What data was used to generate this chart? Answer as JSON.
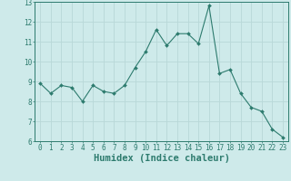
{
  "x": [
    0,
    1,
    2,
    3,
    4,
    5,
    6,
    7,
    8,
    9,
    10,
    11,
    12,
    13,
    14,
    15,
    16,
    17,
    18,
    19,
    20,
    21,
    22,
    23
  ],
  "y": [
    8.9,
    8.4,
    8.8,
    8.7,
    8.0,
    8.8,
    8.5,
    8.4,
    8.8,
    9.7,
    10.5,
    11.6,
    10.8,
    11.4,
    11.4,
    10.9,
    12.8,
    9.4,
    9.6,
    8.4,
    7.7,
    7.5,
    6.6,
    6.2
  ],
  "xlabel": "Humidex (Indice chaleur)",
  "ylim": [
    6,
    13
  ],
  "xlim": [
    -0.5,
    23.5
  ],
  "yticks": [
    6,
    7,
    8,
    9,
    10,
    11,
    12,
    13
  ],
  "xticks": [
    0,
    1,
    2,
    3,
    4,
    5,
    6,
    7,
    8,
    9,
    10,
    11,
    12,
    13,
    14,
    15,
    16,
    17,
    18,
    19,
    20,
    21,
    22,
    23
  ],
  "line_color": "#2d7b6e",
  "marker_color": "#2d7b6e",
  "bg_color": "#ceeaea",
  "grid_color": "#b8d8d8",
  "tick_label_fontsize": 5.5,
  "xlabel_fontsize": 7.5
}
